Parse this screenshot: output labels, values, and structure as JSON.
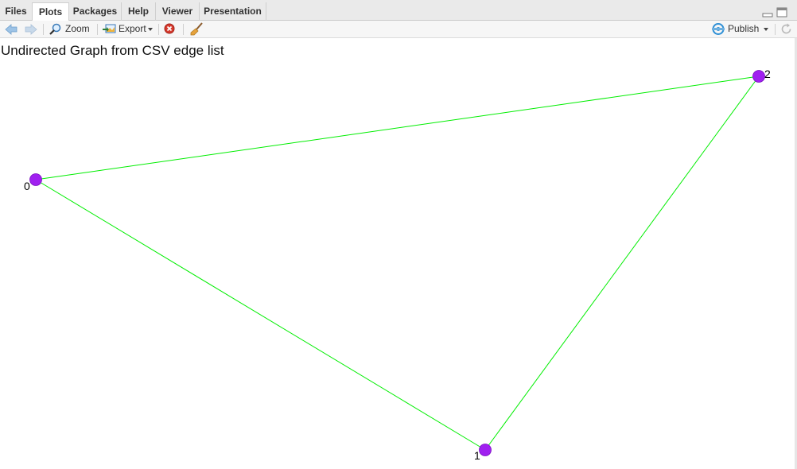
{
  "tabs": [
    {
      "label": "Files",
      "active": false
    },
    {
      "label": "Plots",
      "active": true
    },
    {
      "label": "Packages",
      "active": false
    },
    {
      "label": "Help",
      "active": false
    },
    {
      "label": "Viewer",
      "active": false
    },
    {
      "label": "Presentation",
      "active": false
    }
  ],
  "toolbar": {
    "back_icon": "arrow-left-icon",
    "forward_icon": "arrow-right-icon",
    "zoom_label": "Zoom",
    "export_label": "Export",
    "publish_label": "Publish"
  },
  "plot": {
    "title": "Undirected Graph from CSV edge list",
    "node_color": "#a020f0",
    "edge_color": "#00ee00",
    "chart_data": {
      "type": "network",
      "directed": false,
      "nodes": [
        {
          "id": "0",
          "label": "0"
        },
        {
          "id": "1",
          "label": "1"
        },
        {
          "id": "2",
          "label": "2"
        }
      ],
      "edges": [
        {
          "source": "0",
          "target": "1"
        },
        {
          "source": "1",
          "target": "2"
        },
        {
          "source": "0",
          "target": "2"
        }
      ]
    }
  }
}
